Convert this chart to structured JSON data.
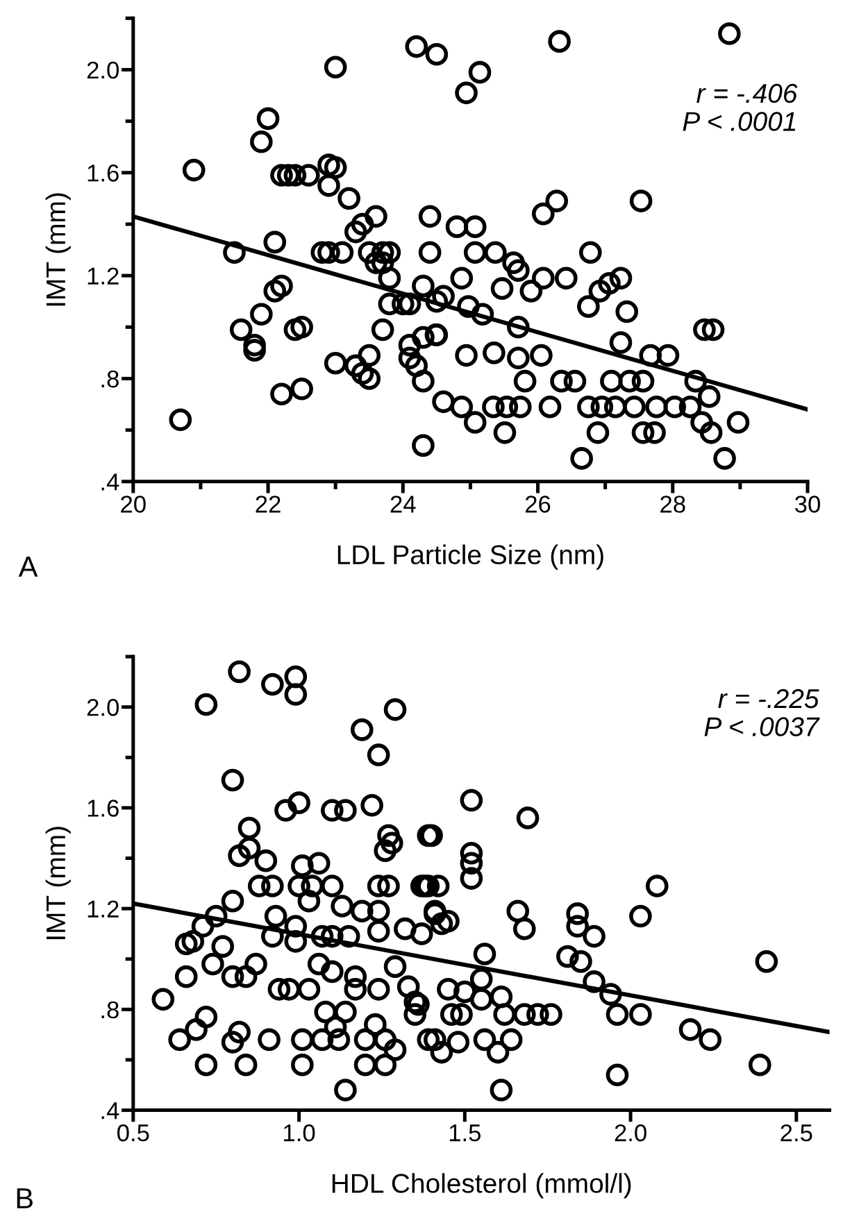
{
  "chart_data": [
    {
      "type": "scatter",
      "xlabel": "LDL Particle Size (nm)",
      "ylabel": "IMT (mm)",
      "xlim": [
        20,
        30
      ],
      "ylim": [
        0.4,
        2.2
      ],
      "xticks": [
        20,
        {
          "value": 21,
          "label": null
        },
        22,
        {
          "value": 23,
          "label": null
        },
        24,
        {
          "value": 25,
          "label": null
        },
        26,
        {
          "value": 27,
          "label": null
        },
        28,
        {
          "value": 29,
          "label": null
        },
        30
      ],
      "yticks": [
        {
          "value": 0.4,
          "label": ".4"
        },
        {
          "value": 0.6,
          "label": null
        },
        {
          "value": 0.8,
          "label": ".8"
        },
        {
          "value": 1.0,
          "label": null
        },
        {
          "value": 1.2,
          "label": "1.2"
        },
        {
          "value": 1.4,
          "label": null
        },
        {
          "value": 1.6,
          "label": "1.6"
        },
        {
          "value": 1.8,
          "label": null
        },
        {
          "value": 2.0,
          "label": "2.0"
        },
        {
          "value": 2.2,
          "label": null
        }
      ],
      "grid": false,
      "annotations": [
        "r = -.406\nP < .0001",
        "A"
      ],
      "series": [
        {
          "marker": "circle",
          "color": "#000000",
          "x": [
            20.7,
            20.9,
            21.5,
            21.6,
            21.8,
            21.8,
            21.9,
            21.9,
            22.0,
            22.1,
            22.1,
            22.2,
            22.2,
            22.2,
            22.3,
            22.4,
            22.4,
            22.5,
            22.5,
            22.6,
            22.8,
            22.9,
            22.9,
            23.0,
            23.0,
            22.9,
            23.1,
            23.0,
            23.2,
            23.3,
            23.3,
            23.4,
            23.4,
            23.5,
            23.5,
            23.6,
            23.5,
            23.6,
            23.7,
            23.7,
            23.8,
            23.8,
            23.7,
            23.8,
            24.0,
            24.1,
            24.1,
            24.1,
            24.2,
            24.3,
            24.3,
            24.3,
            24.2,
            24.5,
            24.4,
            24.4,
            24.5,
            24.5,
            24.6,
            24.3,
            24.94,
            25.14,
            26.32,
            28.84,
            26.08,
            26.28,
            27.53,
            24.8,
            25.07,
            25.07,
            25.37,
            25.64,
            25.71,
            26.08,
            26.42,
            26.78,
            26.92,
            27.06,
            27.23,
            26.75,
            27.32,
            25.47,
            25.9,
            24.87,
            24.6,
            24.97,
            25.18,
            25.71,
            24.49,
            27.23,
            28.47,
            28.6,
            24.94,
            25.35,
            25.71,
            26.05,
            27.67,
            27.93,
            25.81,
            26.35,
            26.55,
            27.09,
            27.36,
            27.56,
            28.34,
            24.87,
            25.07,
            25.34,
            25.54,
            25.74,
            26.18,
            26.75,
            26.95,
            27.15,
            27.43,
            27.76,
            28.03,
            28.26,
            28.54,
            28.43,
            28.57,
            28.97,
            25.51,
            26.89,
            27.56,
            27.73,
            26.65,
            28.77
          ],
          "values": [
            0.64,
            1.61,
            1.29,
            0.99,
            0.93,
            0.91,
            1.05,
            1.72,
            1.81,
            1.33,
            1.14,
            1.16,
            0.74,
            1.59,
            1.59,
            1.59,
            0.99,
            1.0,
            0.76,
            1.59,
            1.29,
            1.55,
            1.63,
            1.62,
            2.01,
            1.29,
            1.29,
            0.86,
            1.5,
            0.85,
            1.37,
            1.4,
            0.82,
            0.8,
            0.89,
            1.43,
            1.29,
            1.25,
            1.29,
            1.25,
            1.29,
            1.19,
            0.99,
            1.09,
            1.09,
            1.09,
            0.93,
            0.88,
            0.85,
            0.79,
            0.54,
            1.16,
            2.09,
            2.06,
            1.43,
            1.29,
            1.1,
            0.97,
            0.71,
            0.96,
            1.91,
            1.99,
            2.11,
            2.14,
            1.44,
            1.49,
            1.49,
            1.39,
            1.39,
            1.29,
            1.29,
            1.25,
            1.22,
            1.19,
            1.19,
            1.29,
            1.14,
            1.17,
            1.19,
            1.08,
            1.06,
            1.15,
            1.14,
            1.19,
            1.12,
            1.08,
            1.05,
            1.0,
            0.97,
            0.94,
            0.99,
            0.99,
            0.89,
            0.9,
            0.88,
            0.89,
            0.89,
            0.89,
            0.79,
            0.79,
            0.79,
            0.79,
            0.79,
            0.79,
            0.79,
            0.69,
            0.63,
            0.69,
            0.69,
            0.69,
            0.69,
            0.69,
            0.69,
            0.69,
            0.69,
            0.69,
            0.69,
            0.69,
            0.73,
            0.63,
            0.59,
            0.63,
            0.59,
            0.59,
            0.59,
            0.59,
            0.49,
            0.49
          ]
        },
        {
          "type": "line",
          "color": "#000000",
          "x": [
            20,
            30
          ],
          "values": [
            1.43,
            0.68
          ]
        }
      ]
    },
    {
      "type": "scatter",
      "xlabel": "HDL Cholesterol (mmol/l)",
      "ylabel": "IMT (mm)",
      "xlim": [
        0.5,
        2.6
      ],
      "ylim": [
        0.4,
        2.2
      ],
      "xticks": [
        {
          "value": 0.5,
          "label": "0.5"
        },
        {
          "value": 1.0,
          "label": "1.0"
        },
        {
          "value": 1.5,
          "label": "1.5"
        },
        {
          "value": 2.0,
          "label": "2.0"
        },
        {
          "value": 2.5,
          "label": "2.5"
        }
      ],
      "yticks": [
        {
          "value": 0.4,
          "label": ".4"
        },
        {
          "value": 0.6,
          "label": null
        },
        {
          "value": 0.8,
          "label": ".8"
        },
        {
          "value": 1.0,
          "label": null
        },
        {
          "value": 1.2,
          "label": "1.2"
        },
        {
          "value": 1.4,
          "label": null
        },
        {
          "value": 1.6,
          "label": "1.6"
        },
        {
          "value": 1.8,
          "label": null
        },
        {
          "value": 2.0,
          "label": "2.0"
        },
        {
          "value": 2.2,
          "label": null
        }
      ],
      "grid": false,
      "annotations": [
        "r = -.225\nP < .0037",
        "B"
      ],
      "series": [
        {
          "marker": "circle",
          "color": "#000000",
          "x": [
            0.72,
            0.82,
            0.92,
            0.99,
            0.99,
            1.19,
            1.24,
            1.29,
            0.8,
            0.96,
            1.0,
            1.1,
            1.14,
            1.22,
            0.85,
            0.82,
            0.85,
            0.9,
            1.01,
            1.06,
            1.27,
            1.28,
            1.26,
            1.4,
            0.88,
            0.92,
            1.0,
            1.04,
            1.1,
            1.24,
            1.27,
            1.38,
            1.42,
            0.8,
            0.93,
            1.03,
            1.13,
            1.19,
            1.24,
            1.41,
            1.45,
            0.75,
            0.71,
            0.68,
            0.66,
            0.77,
            0.92,
            0.99,
            0.99,
            1.07,
            1.1,
            1.15,
            1.24,
            1.32,
            1.37,
            0.74,
            0.66,
            0.8,
            0.84,
            0.87,
            1.06,
            1.1,
            1.17,
            1.29,
            0.94,
            0.97,
            1.03,
            1.17,
            1.24,
            1.33,
            1.35,
            0.59,
            1.08,
            1.14,
            1.35,
            0.64,
            0.69,
            0.72,
            0.8,
            0.82,
            0.91,
            1.01,
            1.07,
            1.11,
            1.12,
            1.2,
            1.23,
            1.26,
            1.29,
            1.41,
            0.72,
            0.84,
            1.01,
            1.2,
            1.26,
            1.14,
            1.52,
            1.69,
            1.39,
            1.52,
            1.52,
            1.52,
            1.37,
            1.39,
            1.41,
            1.43,
            1.66,
            1.68,
            1.84,
            1.84,
            1.89,
            2.08,
            2.03,
            2.41,
            1.56,
            1.55,
            1.81,
            1.85,
            1.89,
            1.94,
            1.96,
            2.03,
            2.18,
            2.24,
            2.39,
            1.96,
            1.61,
            1.45,
            1.5,
            1.55,
            1.61,
            1.46,
            1.49,
            1.62,
            1.68,
            1.72,
            1.76,
            1.39,
            1.43,
            1.48,
            1.56,
            1.6,
            1.64,
            1.36
          ],
          "values": [
            2.01,
            2.14,
            2.09,
            2.12,
            2.05,
            1.91,
            1.81,
            1.99,
            1.71,
            1.59,
            1.62,
            1.59,
            1.59,
            1.61,
            1.52,
            1.41,
            1.44,
            1.39,
            1.37,
            1.38,
            1.49,
            1.46,
            1.43,
            1.49,
            1.29,
            1.29,
            1.29,
            1.29,
            1.29,
            1.29,
            1.29,
            1.29,
            1.29,
            1.23,
            1.17,
            1.23,
            1.21,
            1.19,
            1.19,
            1.19,
            1.15,
            1.17,
            1.13,
            1.07,
            1.06,
            1.05,
            1.09,
            1.13,
            1.07,
            1.09,
            1.09,
            1.09,
            1.11,
            1.12,
            1.1,
            0.98,
            0.93,
            0.93,
            0.93,
            0.98,
            0.98,
            0.95,
            0.93,
            0.97,
            0.88,
            0.88,
            0.88,
            0.88,
            0.88,
            0.89,
            0.83,
            0.84,
            0.79,
            0.79,
            0.78,
            0.68,
            0.72,
            0.77,
            0.67,
            0.71,
            0.68,
            0.68,
            0.68,
            0.73,
            0.68,
            0.68,
            0.74,
            0.68,
            0.64,
            0.68,
            0.58,
            0.58,
            0.58,
            0.58,
            0.58,
            0.48,
            1.63,
            1.56,
            1.49,
            1.42,
            1.38,
            1.32,
            1.29,
            1.29,
            1.18,
            1.14,
            1.19,
            1.12,
            1.18,
            1.13,
            1.09,
            1.29,
            1.17,
            0.99,
            1.02,
            0.92,
            1.01,
            0.99,
            0.91,
            0.86,
            0.78,
            0.78,
            0.72,
            0.68,
            0.58,
            0.54,
            0.48,
            0.88,
            0.87,
            0.84,
            0.85,
            0.78,
            0.78,
            0.78,
            0.78,
            0.78,
            0.78,
            0.68,
            0.63,
            0.67,
            0.68,
            0.63,
            0.68,
            0.82
          ]
        },
        {
          "type": "line",
          "color": "#000000",
          "x": [
            0.5,
            2.6
          ],
          "values": [
            1.22,
            0.71
          ]
        }
      ]
    }
  ]
}
